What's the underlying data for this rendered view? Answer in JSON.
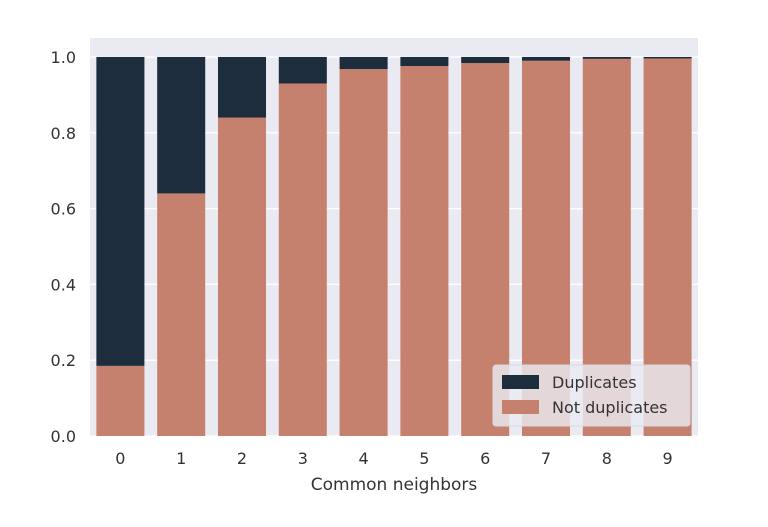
{
  "chart_data": {
    "type": "bar",
    "stacked": true,
    "normalized": true,
    "categories": [
      "0",
      "1",
      "2",
      "3",
      "4",
      "5",
      "6",
      "7",
      "8",
      "9"
    ],
    "series": [
      {
        "name": "Not duplicates",
        "color": "#c5816d",
        "values": [
          0.185,
          0.64,
          0.84,
          0.93,
          0.968,
          0.976,
          0.984,
          0.99,
          0.995,
          0.996
        ]
      },
      {
        "name": "Duplicates",
        "color": "#1e2d3e",
        "values": [
          0.815,
          0.36,
          0.16,
          0.07,
          0.032,
          0.024,
          0.016,
          0.01,
          0.005,
          0.004
        ]
      }
    ],
    "title": "",
    "xlabel": "Common neighbors",
    "ylabel": "",
    "ylim": [
      0,
      1.05
    ],
    "yticks": [
      "0.0",
      "0.2",
      "0.4",
      "0.6",
      "0.8",
      "1.0"
    ],
    "grid": true,
    "legend": {
      "placement": "bottom-right",
      "entries": [
        "Duplicates",
        "Not duplicates"
      ]
    },
    "colors": {
      "background": "#eaeaf2",
      "grid": "#ffffff",
      "duplicates": "#1e2d3e",
      "not_duplicates": "#c5816d"
    }
  }
}
